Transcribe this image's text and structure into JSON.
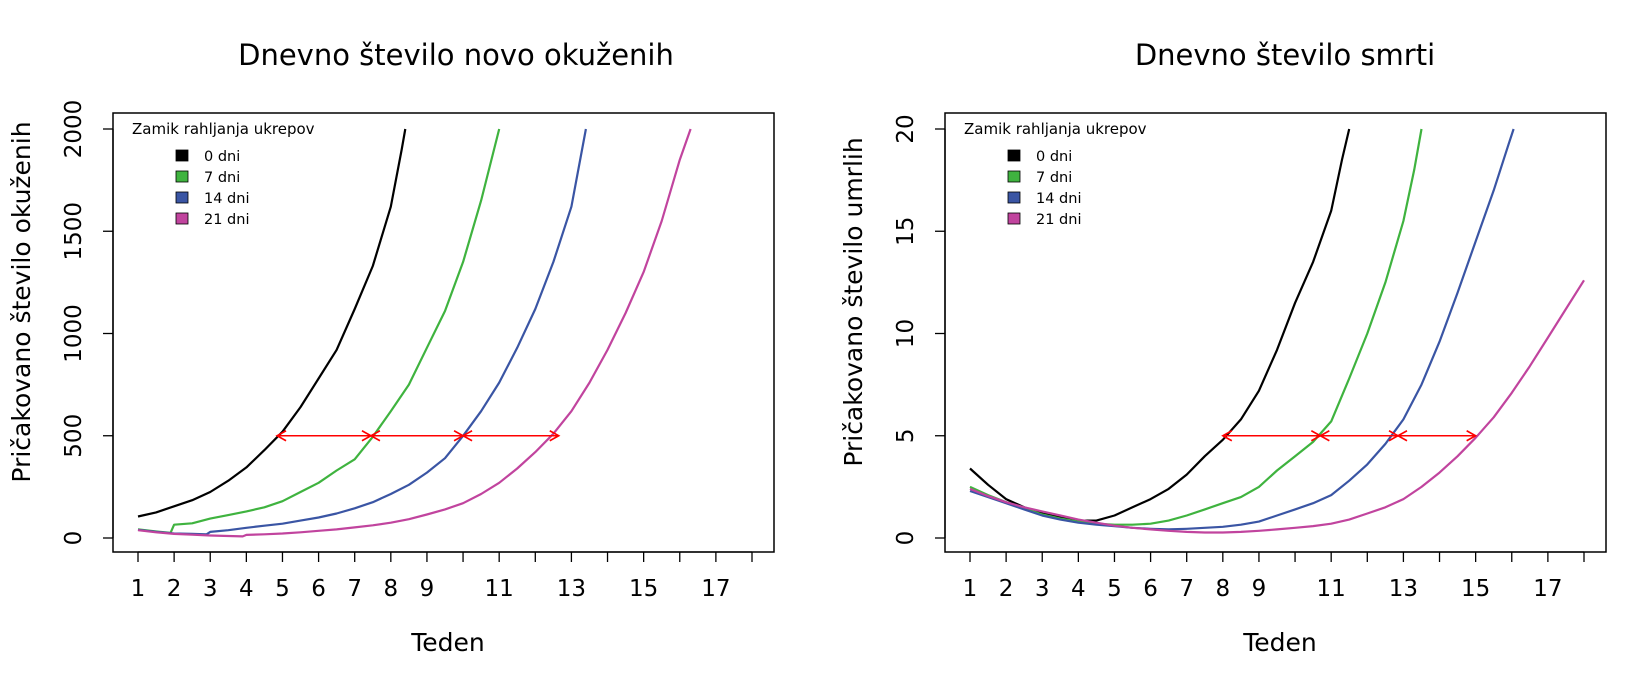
{
  "colors": {
    "0 dni": "#000000",
    "7 dni": "#3fb33f",
    "14 dni": "#3a55a4",
    "21 dni": "#c1449e",
    "arrow": "#ff0000"
  },
  "chart_data": [
    {
      "type": "line",
      "title": "Dnevno število novo okuženih",
      "xlabel": "Teden",
      "ylabel": "Pričakovano število okuženih",
      "xlim": [
        1,
        18
      ],
      "ylim": [
        0,
        2000
      ],
      "x_ticks": [
        1,
        2,
        3,
        4,
        5,
        6,
        7,
        8,
        9,
        10,
        11,
        12,
        13,
        14,
        15,
        16,
        17,
        18
      ],
      "x_tick_labels": [
        "1",
        "2",
        "3",
        "4",
        "5",
        "6",
        "7",
        "8",
        "9",
        "",
        "11",
        "",
        "13",
        "",
        "15",
        "",
        "17",
        ""
      ],
      "y_ticks": [
        0,
        500,
        1000,
        1500,
        2000
      ],
      "y_tick_labels": [
        "0",
        "500",
        "1000",
        "1500",
        "2000"
      ],
      "legend": {
        "title": "Zamik rahljanja ukrepov",
        "position": "top-left",
        "entries": [
          "0 dni",
          "7 dni",
          "14 dni",
          "21 dni"
        ]
      },
      "grid": false,
      "series": [
        {
          "name": "0 dni",
          "points": [
            [
              1,
              105
            ],
            [
              1.5,
              125
            ],
            [
              2,
              155
            ],
            [
              2.5,
              185
            ],
            [
              3,
              225
            ],
            [
              3.5,
              280
            ],
            [
              4,
              345
            ],
            [
              4.5,
              430
            ],
            [
              5,
              520
            ],
            [
              5.5,
              640
            ],
            [
              6,
              780
            ],
            [
              6.5,
              920
            ],
            [
              7,
              1120
            ],
            [
              7.5,
              1330
            ],
            [
              8,
              1620
            ],
            [
              8.3,
              1900
            ],
            [
              8.4,
              2000
            ]
          ]
        },
        {
          "name": "7 dni",
          "points": [
            [
              1,
              42
            ],
            [
              1.5,
              32
            ],
            [
              1.9,
              25
            ],
            [
              2,
              65
            ],
            [
              2.5,
              72
            ],
            [
              3,
              95
            ],
            [
              3.5,
              112
            ],
            [
              4,
              130
            ],
            [
              4.5,
              150
            ],
            [
              5,
              180
            ],
            [
              5.5,
              225
            ],
            [
              6,
              270
            ],
            [
              6.5,
              330
            ],
            [
              7,
              385
            ],
            [
              7.5,
              495
            ],
            [
              8,
              620
            ],
            [
              8.5,
              750
            ],
            [
              9,
              930
            ],
            [
              9.5,
              1110
            ],
            [
              10,
              1350
            ],
            [
              10.5,
              1650
            ],
            [
              11,
              2000
            ]
          ]
        },
        {
          "name": "14 dni",
          "points": [
            [
              1,
              40
            ],
            [
              1.5,
              30
            ],
            [
              2,
              22
            ],
            [
              2.5,
              20
            ],
            [
              2.9,
              18
            ],
            [
              3,
              30
            ],
            [
              3.5,
              38
            ],
            [
              4,
              50
            ],
            [
              4.5,
              60
            ],
            [
              5,
              70
            ],
            [
              5.5,
              85
            ],
            [
              6,
              100
            ],
            [
              6.5,
              120
            ],
            [
              7,
              145
            ],
            [
              7.5,
              175
            ],
            [
              8,
              215
            ],
            [
              8.5,
              260
            ],
            [
              9,
              320
            ],
            [
              9.5,
              390
            ],
            [
              10,
              500
            ],
            [
              10.5,
              620
            ],
            [
              11,
              760
            ],
            [
              11.5,
              930
            ],
            [
              12,
              1120
            ],
            [
              12.5,
              1350
            ],
            [
              13,
              1620
            ],
            [
              13.4,
              2000
            ]
          ]
        },
        {
          "name": "21 dni",
          "points": [
            [
              1,
              38
            ],
            [
              1.5,
              28
            ],
            [
              2,
              20
            ],
            [
              2.5,
              16
            ],
            [
              3,
              12
            ],
            [
              3.5,
              10
            ],
            [
              3.9,
              8
            ],
            [
              4,
              15
            ],
            [
              4.5,
              18
            ],
            [
              5,
              22
            ],
            [
              5.5,
              28
            ],
            [
              6,
              35
            ],
            [
              6.5,
              42
            ],
            [
              7,
              52
            ],
            [
              7.5,
              62
            ],
            [
              8,
              75
            ],
            [
              8.5,
              92
            ],
            [
              9,
              115
            ],
            [
              9.5,
              140
            ],
            [
              10,
              170
            ],
            [
              10.5,
              215
            ],
            [
              11,
              270
            ],
            [
              11.5,
              340
            ],
            [
              12,
              420
            ],
            [
              12.5,
              510
            ],
            [
              13,
              620
            ],
            [
              13.5,
              760
            ],
            [
              14,
              920
            ],
            [
              14.5,
              1100
            ],
            [
              15,
              1300
            ],
            [
              15.5,
              1550
            ],
            [
              16,
              1850
            ],
            [
              16.3,
              2000
            ]
          ]
        }
      ],
      "annotations": [
        {
          "type": "double-arrow",
          "y": 500,
          "x_from": 4.85,
          "x_to": 7.45
        },
        {
          "type": "double-arrow",
          "y": 500,
          "x_from": 7.45,
          "x_to": 10.0
        },
        {
          "type": "double-arrow",
          "y": 500,
          "x_from": 10.0,
          "x_to": 12.65
        }
      ]
    },
    {
      "type": "line",
      "title": "Dnevno število smrti",
      "xlabel": "Teden",
      "ylabel": "Pričakovano število umrlih",
      "xlim": [
        1,
        18
      ],
      "ylim": [
        0,
        20
      ],
      "x_ticks": [
        1,
        2,
        3,
        4,
        5,
        6,
        7,
        8,
        9,
        10,
        11,
        12,
        13,
        14,
        15,
        16,
        17,
        18
      ],
      "x_tick_labels": [
        "1",
        "2",
        "3",
        "4",
        "5",
        "6",
        "7",
        "8",
        "9",
        "",
        "11",
        "",
        "13",
        "",
        "15",
        "",
        "17",
        ""
      ],
      "y_ticks": [
        0,
        5,
        10,
        15,
        20
      ],
      "y_tick_labels": [
        "0",
        "5",
        "10",
        "15",
        "20"
      ],
      "legend": {
        "title": "Zamik rahljanja ukrepov",
        "position": "top-left",
        "entries": [
          "0 dni",
          "7 dni",
          "14 dni",
          "21 dni"
        ]
      },
      "grid": false,
      "series": [
        {
          "name": "0 dni",
          "points": [
            [
              1,
              3.4
            ],
            [
              1.5,
              2.6
            ],
            [
              2,
              1.9
            ],
            [
              2.5,
              1.5
            ],
            [
              3,
              1.2
            ],
            [
              3.5,
              1.0
            ],
            [
              4,
              0.85
            ],
            [
              4.5,
              0.85
            ],
            [
              5,
              1.1
            ],
            [
              5.5,
              1.5
            ],
            [
              6,
              1.9
            ],
            [
              6.5,
              2.4
            ],
            [
              7,
              3.1
            ],
            [
              7.5,
              4.0
            ],
            [
              8,
              4.8
            ],
            [
              8.5,
              5.8
            ],
            [
              9,
              7.2
            ],
            [
              9.5,
              9.2
            ],
            [
              10,
              11.5
            ],
            [
              10.5,
              13.5
            ],
            [
              11,
              16.0
            ],
            [
              11.3,
              18.5
            ],
            [
              11.5,
              20
            ]
          ]
        },
        {
          "name": "7 dni",
          "points": [
            [
              1,
              2.5
            ],
            [
              1.5,
              2.1
            ],
            [
              2,
              1.75
            ],
            [
              2.5,
              1.45
            ],
            [
              3,
              1.15
            ],
            [
              3.5,
              0.95
            ],
            [
              4,
              0.8
            ],
            [
              4.5,
              0.7
            ],
            [
              5,
              0.65
            ],
            [
              5.5,
              0.65
            ],
            [
              6,
              0.7
            ],
            [
              6.5,
              0.85
            ],
            [
              7,
              1.1
            ],
            [
              7.5,
              1.4
            ],
            [
              8,
              1.7
            ],
            [
              8.5,
              2.0
            ],
            [
              9,
              2.5
            ],
            [
              9.5,
              3.3
            ],
            [
              10,
              4.0
            ],
            [
              10.5,
              4.7
            ],
            [
              11,
              5.7
            ],
            [
              11.5,
              7.8
            ],
            [
              12,
              10.0
            ],
            [
              12.5,
              12.5
            ],
            [
              13,
              15.5
            ],
            [
              13.3,
              18.0
            ],
            [
              13.5,
              20
            ]
          ]
        },
        {
          "name": "14 dni",
          "points": [
            [
              1,
              2.3
            ],
            [
              1.5,
              2.0
            ],
            [
              2,
              1.7
            ],
            [
              2.5,
              1.4
            ],
            [
              3,
              1.1
            ],
            [
              3.5,
              0.9
            ],
            [
              4,
              0.75
            ],
            [
              4.5,
              0.65
            ],
            [
              5,
              0.58
            ],
            [
              5.5,
              0.5
            ],
            [
              6,
              0.45
            ],
            [
              6.5,
              0.42
            ],
            [
              7,
              0.45
            ],
            [
              7.5,
              0.5
            ],
            [
              8,
              0.55
            ],
            [
              8.5,
              0.65
            ],
            [
              9,
              0.8
            ],
            [
              9.5,
              1.1
            ],
            [
              10,
              1.4
            ],
            [
              10.5,
              1.7
            ],
            [
              11,
              2.1
            ],
            [
              11.5,
              2.8
            ],
            [
              12,
              3.6
            ],
            [
              12.5,
              4.6
            ],
            [
              13,
              5.8
            ],
            [
              13.5,
              7.5
            ],
            [
              14,
              9.6
            ],
            [
              14.5,
              12.0
            ],
            [
              15,
              14.5
            ],
            [
              15.5,
              17.0
            ],
            [
              15.9,
              19.2
            ],
            [
              16.05,
              20
            ]
          ]
        },
        {
          "name": "21 dni",
          "points": [
            [
              1,
              2.4
            ],
            [
              1.5,
              2.05
            ],
            [
              2,
              1.75
            ],
            [
              2.5,
              1.5
            ],
            [
              3,
              1.3
            ],
            [
              3.5,
              1.1
            ],
            [
              4,
              0.9
            ],
            [
              4.5,
              0.75
            ],
            [
              5,
              0.6
            ],
            [
              5.5,
              0.5
            ],
            [
              6,
              0.42
            ],
            [
              6.5,
              0.35
            ],
            [
              7,
              0.3
            ],
            [
              7.5,
              0.27
            ],
            [
              8,
              0.27
            ],
            [
              8.5,
              0.3
            ],
            [
              9,
              0.35
            ],
            [
              9.5,
              0.42
            ],
            [
              10,
              0.5
            ],
            [
              10.5,
              0.58
            ],
            [
              11,
              0.7
            ],
            [
              11.5,
              0.9
            ],
            [
              12,
              1.2
            ],
            [
              12.5,
              1.5
            ],
            [
              13,
              1.9
            ],
            [
              13.5,
              2.5
            ],
            [
              14,
              3.2
            ],
            [
              14.5,
              4.0
            ],
            [
              15,
              4.9
            ],
            [
              15.5,
              5.9
            ],
            [
              16,
              7.1
            ],
            [
              16.5,
              8.4
            ],
            [
              17,
              9.8
            ],
            [
              17.5,
              11.2
            ],
            [
              18,
              12.6
            ]
          ]
        }
      ],
      "annotations": [
        {
          "type": "double-arrow",
          "y": 5,
          "x_from": 8.0,
          "x_to": 10.7
        },
        {
          "type": "double-arrow",
          "y": 5,
          "x_from": 10.7,
          "x_to": 12.85
        },
        {
          "type": "double-arrow",
          "y": 5,
          "x_from": 12.85,
          "x_to": 15.0
        }
      ]
    }
  ]
}
